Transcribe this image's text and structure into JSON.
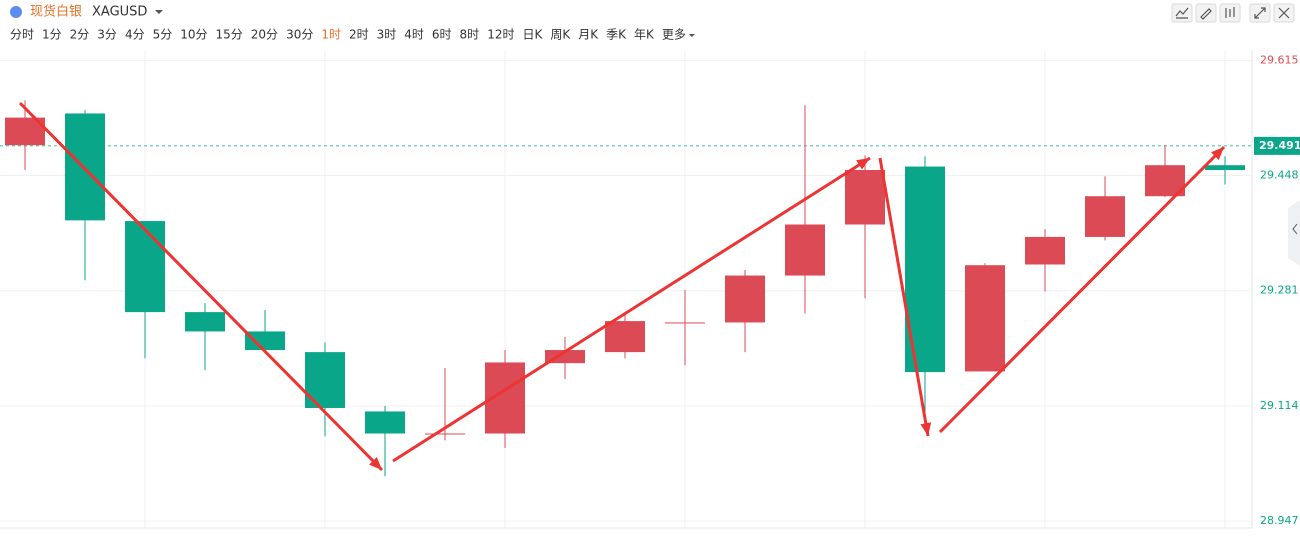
{
  "chart_data": {
    "type": "candlestick",
    "title": "现货白银",
    "symbol": "XAGUSD",
    "timeframes": [
      "分时",
      "1分",
      "2分",
      "3分",
      "4分",
      "5分",
      "10分",
      "15分",
      "20分",
      "30分",
      "1时",
      "2时",
      "3时",
      "4时",
      "6时",
      "8时",
      "12时",
      "日K",
      "周K",
      "月K",
      "季K",
      "年K",
      "更多"
    ],
    "active_timeframe": 10,
    "up_color": "#dc4a55",
    "down_color": "#0aa68a",
    "open": [
      29.492,
      29.538,
      29.382,
      29.25,
      29.222,
      29.192,
      29.106,
      29.074,
      29.074,
      29.176,
      29.192,
      29.235,
      29.235,
      29.303,
      29.377,
      29.461,
      29.164,
      29.319,
      29.359,
      29.418,
      29.463
    ],
    "high": [
      29.557,
      29.543,
      29.382,
      29.263,
      29.253,
      29.206,
      29.114,
      29.169,
      29.195,
      29.214,
      29.25,
      29.282,
      29.311,
      29.55,
      29.477,
      29.476,
      29.321,
      29.37,
      29.447,
      29.492,
      29.476
    ],
    "low": [
      29.456,
      29.296,
      29.183,
      29.166,
      29.192,
      29.07,
      29.012,
      29.064,
      29.053,
      29.153,
      29.183,
      29.173,
      29.192,
      29.248,
      29.27,
      29.096,
      29.164,
      29.28,
      29.354,
      29.417,
      29.435
    ],
    "close": [
      29.532,
      29.383,
      29.25,
      29.222,
      29.195,
      29.111,
      29.074,
      29.074,
      29.177,
      29.195,
      29.237,
      29.235,
      29.303,
      29.377,
      29.456,
      29.163,
      29.318,
      29.359,
      29.418,
      29.463,
      29.456
    ],
    "last_price": 29.491,
    "ylim": [
      28.937,
      29.63
    ],
    "yticks": [
      29.615,
      29.448,
      29.281,
      29.114,
      28.947
    ],
    "grid": true
  }
}
